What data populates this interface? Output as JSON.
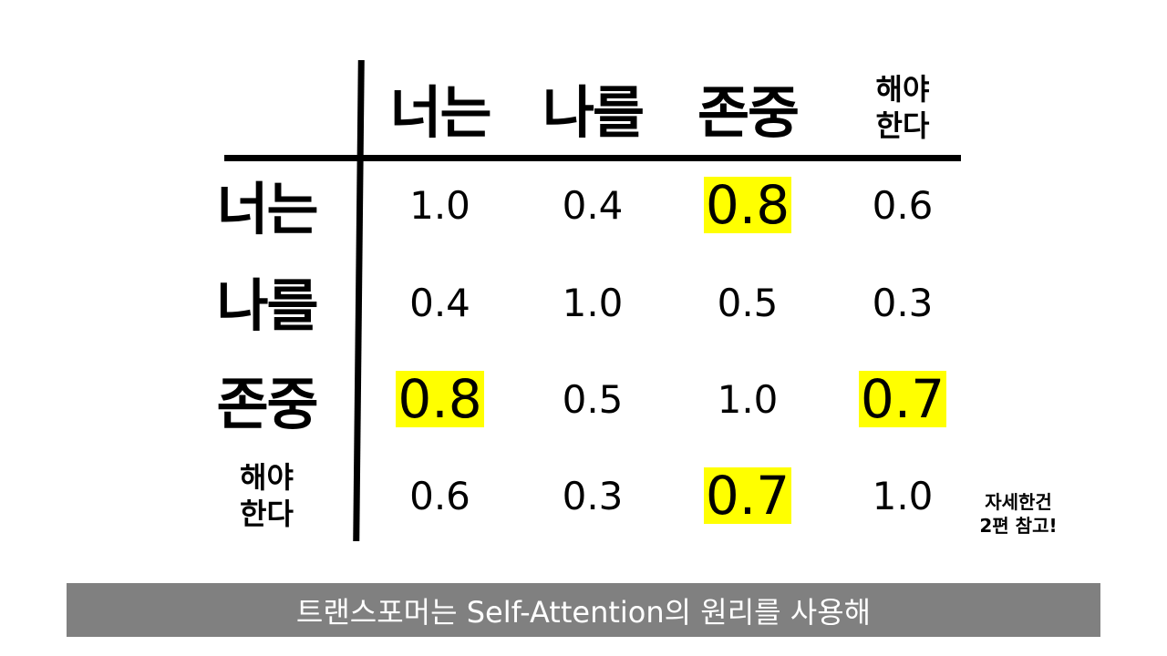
{
  "matrix": {
    "col_headers": [
      "너는",
      "나를",
      "존중",
      "해야\n한다"
    ],
    "row_headers": [
      "너는",
      "나를",
      "존중",
      "해야\n한다"
    ],
    "rows": [
      [
        "1.0",
        "0.4",
        "0.8",
        "0.6"
      ],
      [
        "0.4",
        "1.0",
        "0.5",
        "0.3"
      ],
      [
        "0.8",
        "0.5",
        "1.0",
        "0.7"
      ],
      [
        "0.6",
        "0.3",
        "0.7",
        "1.0"
      ]
    ],
    "highlight_color": "#ffff00"
  },
  "note": "자세한건\n2편 참고!",
  "caption": {
    "text": "트랜스포머는 Self-Attention의 원리를 사용해",
    "background": "#808080"
  }
}
